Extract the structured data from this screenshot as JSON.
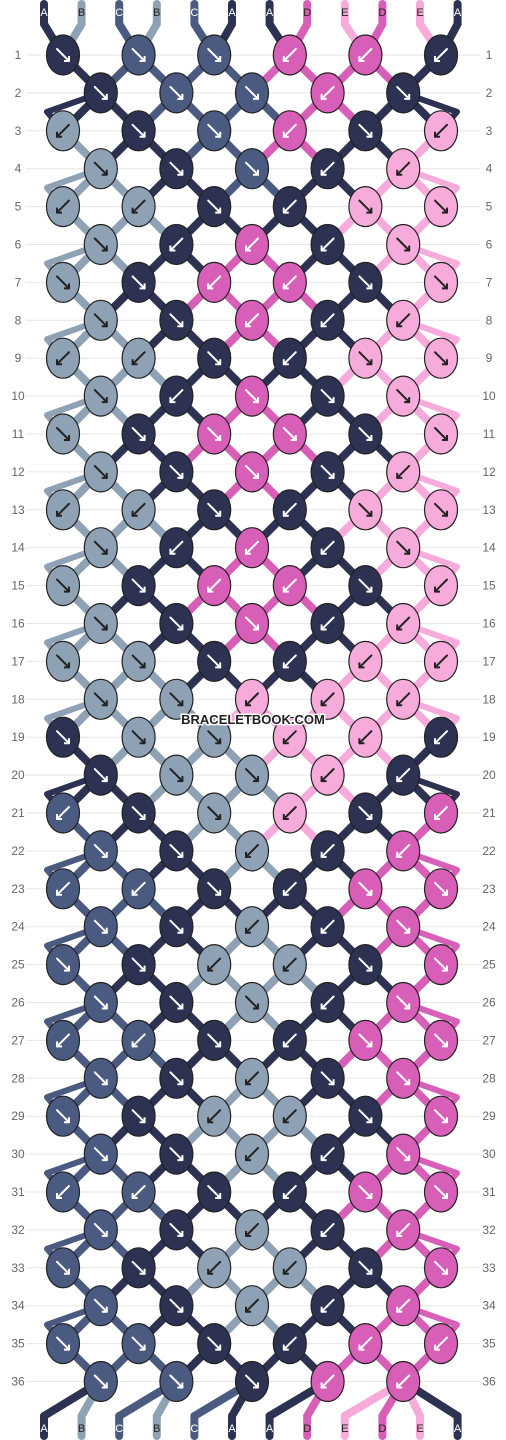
{
  "watermark": "BRACELETBOOK.COM",
  "colors": {
    "A": "#2d3152",
    "B": "#8fa2b5",
    "C": "#4a5a80",
    "D": "#d85fb8",
    "E": "#f7abda"
  },
  "strands_top": [
    "A",
    "B",
    "C",
    "B",
    "C",
    "A",
    "A",
    "D",
    "E",
    "D",
    "E",
    "A"
  ],
  "strands_bottom": [
    "A",
    "B",
    "C",
    "B",
    "C",
    "A",
    "A",
    "D",
    "E",
    "D",
    "E",
    "A"
  ],
  "row_labels": [
    "1",
    "2",
    "3",
    "4",
    "5",
    "6",
    "7",
    "8",
    "9",
    "10",
    "11",
    "12",
    "13",
    "14",
    "15",
    "16",
    "17",
    "18",
    "19",
    "20",
    "21",
    "22",
    "23",
    "24",
    "25",
    "26",
    "27",
    "28",
    "29",
    "30",
    "31",
    "32",
    "33",
    "34",
    "35",
    "36"
  ],
  "pattern": {
    "rows": [
      [
        "A",
        "C",
        "C",
        "D",
        "D",
        "A"
      ],
      [
        "A",
        "C",
        "C",
        "D",
        "A"
      ],
      [
        "B",
        "A",
        "C",
        "D",
        "A",
        "E"
      ],
      [
        "B",
        "A",
        "C",
        "A",
        "E"
      ],
      [
        "B",
        "B",
        "A",
        "A",
        "E",
        "E"
      ],
      [
        "B",
        "A",
        "D",
        "A",
        "E"
      ],
      [
        "B",
        "A",
        "D",
        "D",
        "A",
        "E"
      ],
      [
        "B",
        "A",
        "D",
        "A",
        "E"
      ],
      [
        "B",
        "B",
        "A",
        "A",
        "E",
        "E"
      ],
      [
        "B",
        "A",
        "D",
        "A",
        "E"
      ],
      [
        "B",
        "A",
        "D",
        "D",
        "A",
        "E"
      ],
      [
        "B",
        "A",
        "D",
        "A",
        "E"
      ],
      [
        "B",
        "B",
        "A",
        "A",
        "E",
        "E"
      ],
      [
        "B",
        "A",
        "D",
        "A",
        "E"
      ],
      [
        "B",
        "A",
        "D",
        "D",
        "A",
        "E"
      ],
      [
        "B",
        "A",
        "D",
        "A",
        "E"
      ],
      [
        "B",
        "B",
        "A",
        "A",
        "E",
        "E"
      ],
      [
        "B",
        "B",
        "E",
        "E",
        "E"
      ],
      [
        "A",
        "B",
        "B",
        "E",
        "E",
        "A"
      ],
      [
        "A",
        "B",
        "B",
        "E",
        "A"
      ],
      [
        "C",
        "A",
        "B",
        "E",
        "A",
        "D"
      ],
      [
        "C",
        "A",
        "B",
        "A",
        "D"
      ],
      [
        "C",
        "C",
        "A",
        "A",
        "D",
        "D"
      ],
      [
        "C",
        "A",
        "B",
        "A",
        "D"
      ],
      [
        "C",
        "A",
        "B",
        "B",
        "A",
        "D"
      ],
      [
        "C",
        "A",
        "B",
        "A",
        "D"
      ],
      [
        "C",
        "C",
        "A",
        "A",
        "D",
        "D"
      ],
      [
        "C",
        "A",
        "B",
        "A",
        "D"
      ],
      [
        "C",
        "A",
        "B",
        "B",
        "A",
        "D"
      ],
      [
        "C",
        "A",
        "B",
        "A",
        "D"
      ],
      [
        "C",
        "C",
        "A",
        "A",
        "D",
        "D"
      ],
      [
        "C",
        "A",
        "B",
        "A",
        "D"
      ],
      [
        "C",
        "A",
        "B",
        "B",
        "A",
        "D"
      ],
      [
        "C",
        "A",
        "B",
        "A",
        "D"
      ],
      [
        "C",
        "C",
        "A",
        "A",
        "D",
        "D"
      ],
      [
        "C",
        "C",
        "A",
        "D",
        "D"
      ]
    ],
    "arrows": [
      [
        "se",
        "se",
        "se",
        "sw",
        "sw",
        "sw"
      ],
      [
        "se",
        "se",
        "se",
        "sw",
        "se"
      ],
      [
        "sw",
        "se",
        "se",
        "sw",
        "se",
        "sw"
      ],
      [
        "se",
        "se",
        "se",
        "sw",
        "sw"
      ],
      [
        "sw-se",
        "sw-se",
        "se",
        "sw",
        "se-sw",
        "se-sw"
      ],
      [
        "se",
        "sw",
        "sw",
        "sw",
        "se"
      ],
      [
        "se",
        "se",
        "sw",
        "sw",
        "se",
        "se"
      ],
      [
        "se",
        "se",
        "sw",
        "sw",
        "sw"
      ],
      [
        "sw-se",
        "sw-se",
        "se",
        "sw",
        "se-sw",
        "se-sw"
      ],
      [
        "se",
        "sw",
        "se",
        "se",
        "se"
      ],
      [
        "se",
        "se",
        "se",
        "se",
        "se",
        "se"
      ],
      [
        "se",
        "se",
        "se",
        "se",
        "sw"
      ],
      [
        "sw-se",
        "sw-se",
        "se",
        "sw",
        "se-sw",
        "se-sw"
      ],
      [
        "se",
        "sw",
        "sw",
        "sw",
        "se"
      ],
      [
        "se",
        "se",
        "sw",
        "sw",
        "se",
        "sw"
      ],
      [
        "se",
        "se",
        "se",
        "sw",
        "sw"
      ],
      [
        "se",
        "se",
        "se",
        "sw",
        "sw",
        "sw"
      ],
      [
        "se",
        "se",
        "sw",
        "sw",
        "sw"
      ],
      [
        "se",
        "se",
        "se",
        "sw",
        "sw",
        "sw"
      ],
      [
        "se",
        "se",
        "se",
        "sw",
        "sw"
      ],
      [
        "sw-se",
        "se",
        "se",
        "sw",
        "se",
        "sw"
      ],
      [
        "se",
        "se",
        "sw-se",
        "sw",
        "sw"
      ],
      [
        "sw-se",
        "sw-se",
        "se",
        "sw",
        "se-sw",
        "se-sw"
      ],
      [
        "se",
        "se",
        "sw",
        "sw",
        "se"
      ],
      [
        "se",
        "se",
        "sw",
        "sw",
        "se",
        "se"
      ],
      [
        "se",
        "se",
        "se",
        "sw",
        "se"
      ],
      [
        "sw-se",
        "sw",
        "se",
        "sw",
        "se-sw",
        "se-sw"
      ],
      [
        "se",
        "se",
        "sw",
        "se",
        "se"
      ],
      [
        "se",
        "se",
        "sw",
        "sw",
        "se",
        "se"
      ],
      [
        "se",
        "se",
        "sw",
        "sw",
        "se"
      ],
      [
        "sw-se",
        "sw-se",
        "se",
        "sw",
        "se-sw",
        "se-sw"
      ],
      [
        "se",
        "se",
        "sw-se",
        "sw",
        "sw"
      ],
      [
        "se",
        "se",
        "sw",
        "sw",
        "se",
        "se"
      ],
      [
        "se",
        "se",
        "sw",
        "sw",
        "sw"
      ],
      [
        "se",
        "se",
        "se",
        "sw",
        "sw",
        "sw"
      ],
      [
        "se",
        "se",
        "se",
        "sw",
        "sw"
      ]
    ]
  }
}
